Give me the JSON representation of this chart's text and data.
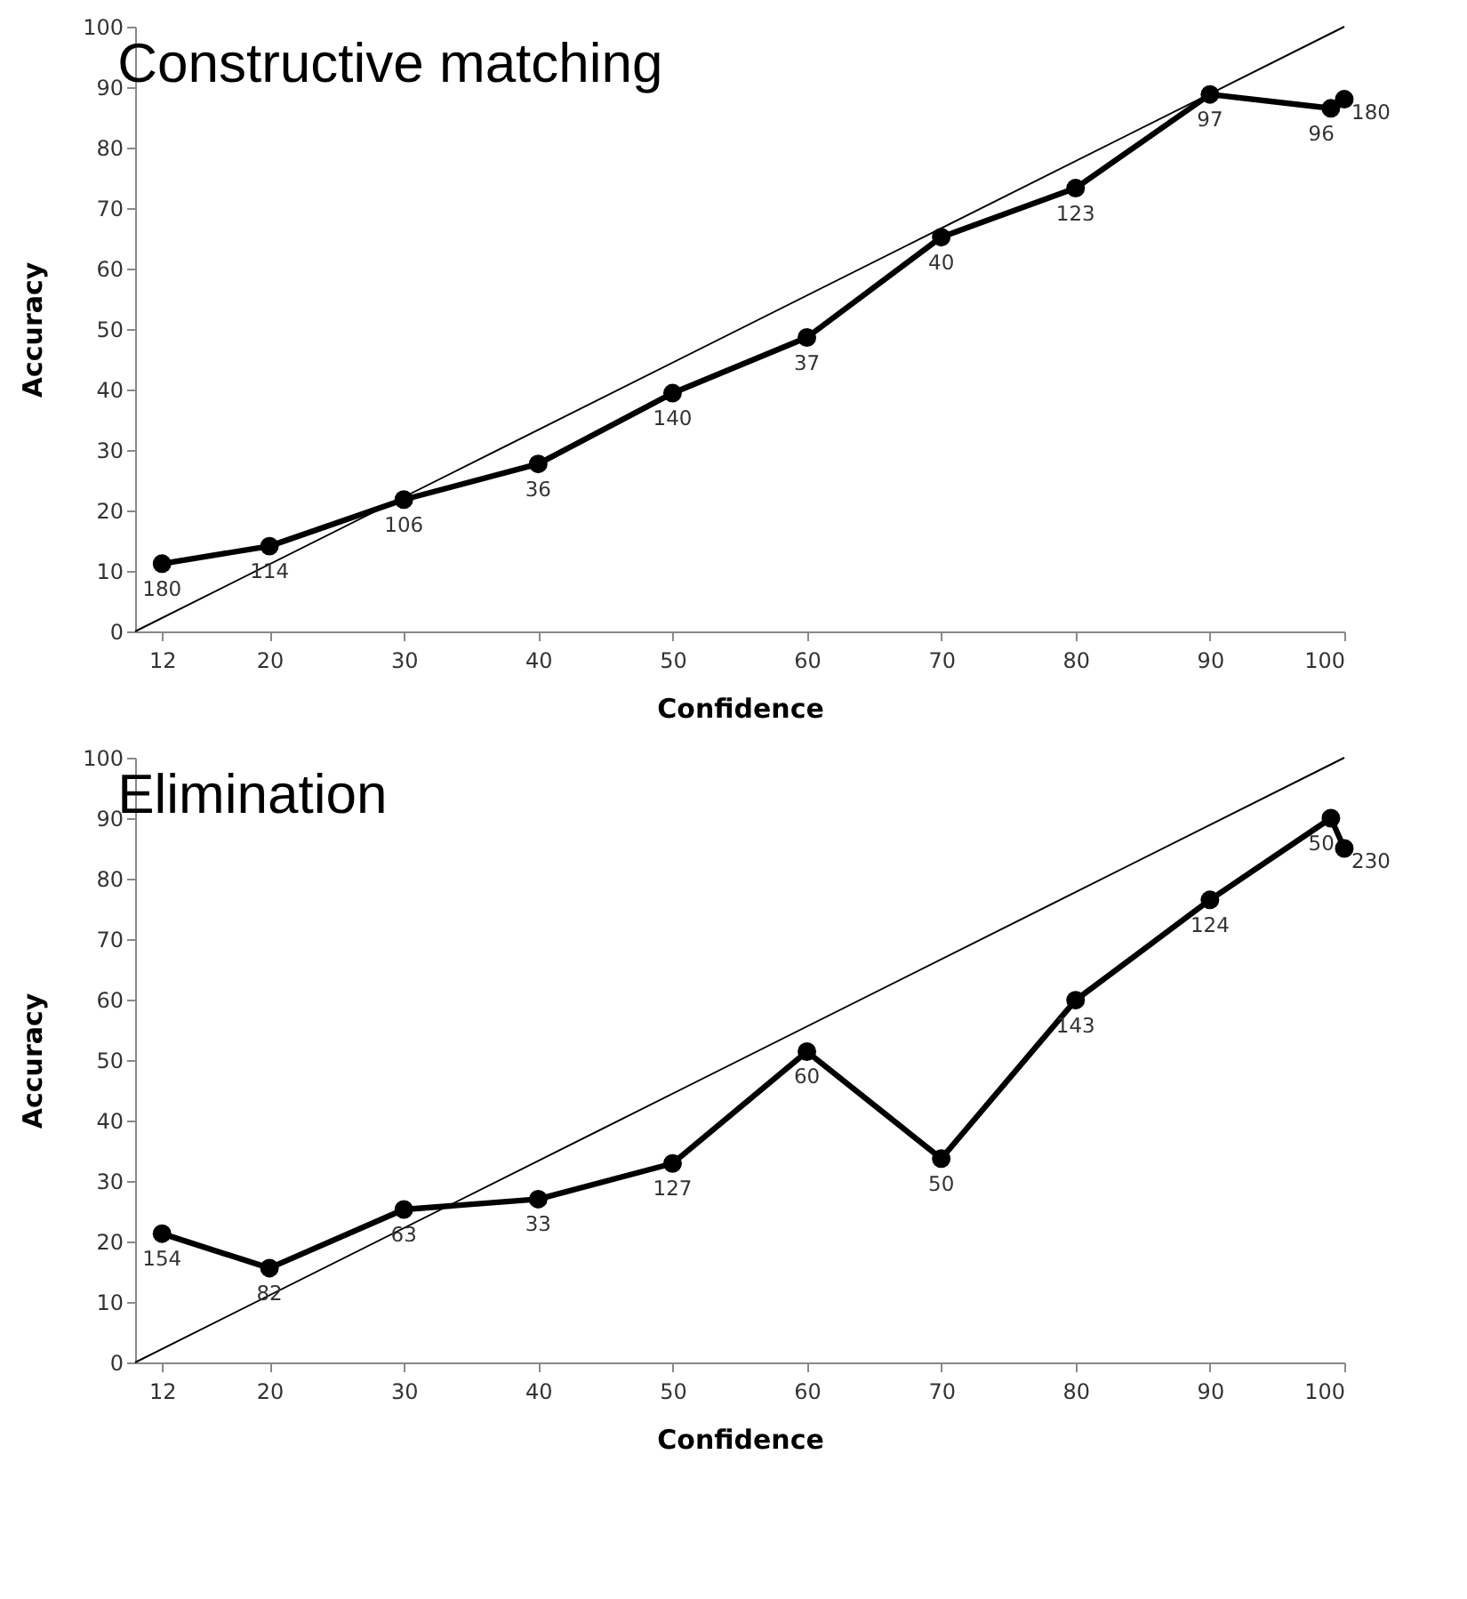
{
  "chart_data": [
    {
      "type": "line",
      "title": "Constructive matching",
      "xlabel": "Confidence",
      "ylabel": "Accuracy",
      "xlim": [
        10,
        100
      ],
      "ylim": [
        0,
        100
      ],
      "xticks": [
        12,
        20,
        30,
        40,
        50,
        60,
        70,
        80,
        90,
        100
      ],
      "yticks": [
        0,
        10,
        20,
        30,
        40,
        50,
        60,
        70,
        80,
        90,
        100
      ],
      "grid": false,
      "series": [
        {
          "color": "#000000",
          "marker": "circle",
          "x": [
            12,
            20,
            30,
            40,
            50,
            60,
            70,
            80,
            90,
            99,
            100
          ],
          "values": [
            11.2,
            14.1,
            21.8,
            27.7,
            39.4,
            48.6,
            65.2,
            73.3,
            88.8,
            86.5,
            88.0
          ]
        },
        {
          "color": "#000000",
          "marker": "none",
          "x": [
            10,
            100
          ],
          "values": [
            0,
            100
          ]
        }
      ],
      "annotations": [
        {
          "text": "180",
          "x": 12,
          "y": 11.2
        },
        {
          "text": "114",
          "x": 20,
          "y": 14.1
        },
        {
          "text": "106",
          "x": 30,
          "y": 21.8
        },
        {
          "text": "36",
          "x": 40,
          "y": 27.7
        },
        {
          "text": "140",
          "x": 50,
          "y": 39.4
        },
        {
          "text": "37",
          "x": 60,
          "y": 48.6
        },
        {
          "text": "40",
          "x": 70,
          "y": 65.2
        },
        {
          "text": "123",
          "x": 80,
          "y": 73.3
        },
        {
          "text": "97",
          "x": 90,
          "y": 88.8
        },
        {
          "text": "96",
          "x": 99,
          "y": 86.5
        },
        {
          "text": "180",
          "x": 100,
          "y": 88.0
        }
      ]
    },
    {
      "type": "line",
      "title": "Elimination",
      "xlabel": "Confidence",
      "ylabel": "Accuracy",
      "xlim": [
        10,
        100
      ],
      "ylim": [
        0,
        100
      ],
      "xticks": [
        12,
        20,
        30,
        40,
        50,
        60,
        70,
        80,
        90,
        100
      ],
      "yticks": [
        0,
        10,
        20,
        30,
        40,
        50,
        60,
        70,
        80,
        90,
        100
      ],
      "grid": false,
      "series": [
        {
          "color": "#000000",
          "marker": "circle",
          "x": [
            12,
            20,
            30,
            40,
            50,
            60,
            70,
            80,
            90,
            99,
            100
          ],
          "values": [
            21.3,
            15.6,
            25.3,
            27.0,
            32.9,
            51.4,
            33.7,
            59.9,
            76.5,
            90.0,
            85.0
          ]
        },
        {
          "color": "#000000",
          "marker": "none",
          "x": [
            10,
            100
          ],
          "values": [
            0,
            100
          ]
        }
      ],
      "annotations": [
        {
          "text": "154",
          "x": 12,
          "y": 21.3
        },
        {
          "text": "82",
          "x": 20,
          "y": 15.6
        },
        {
          "text": "63",
          "x": 30,
          "y": 25.3
        },
        {
          "text": "33",
          "x": 40,
          "y": 27.0
        },
        {
          "text": "127",
          "x": 50,
          "y": 32.9
        },
        {
          "text": "60",
          "x": 60,
          "y": 51.4
        },
        {
          "text": "50",
          "x": 70,
          "y": 33.7
        },
        {
          "text": "143",
          "x": 80,
          "y": 59.9
        },
        {
          "text": "124",
          "x": 90,
          "y": 76.5
        },
        {
          "text": "50",
          "x": 99,
          "y": 90.0
        },
        {
          "text": "230",
          "x": 100,
          "y": 85.0
        }
      ]
    }
  ]
}
